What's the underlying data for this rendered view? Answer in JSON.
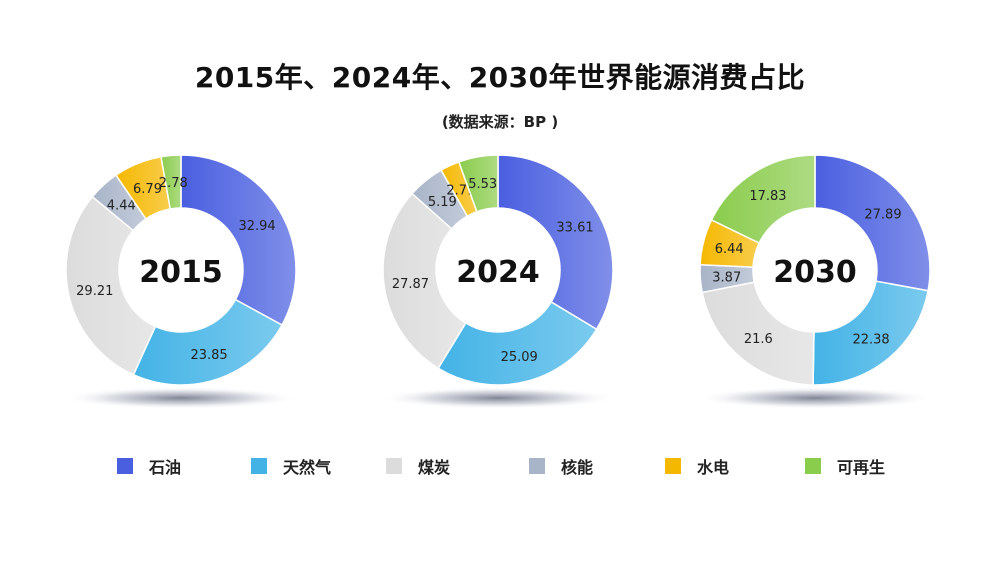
{
  "header": {
    "title": "2015年、2024年、2030年世界能源消费占比",
    "subtitle": "(数据来源：BP )"
  },
  "legend": [
    {
      "label": "石油",
      "color": "#4a5fe0"
    },
    {
      "label": "天然气",
      "color": "#43b3e6"
    },
    {
      "label": "煤炭",
      "color": "#dcdcdc"
    },
    {
      "label": "核能",
      "color": "#a8b4c8"
    },
    {
      "label": "水电",
      "color": "#f5b800"
    },
    {
      "label": "可再生",
      "color": "#8acc4c"
    }
  ],
  "chart_data": [
    {
      "type": "donut",
      "center_label": "2015",
      "categories": [
        "石油",
        "天然气",
        "煤炭",
        "核能",
        "水电",
        "可再生"
      ],
      "values": [
        32.94,
        23.85,
        29.21,
        4.44,
        6.79,
        2.78
      ],
      "data_labels": [
        "32.94",
        "23.85",
        "29.21",
        "4.44",
        "6.79",
        "2.78"
      ]
    },
    {
      "type": "donut",
      "center_label": "2024",
      "categories": [
        "石油",
        "天然气",
        "煤炭",
        "核能",
        "水电",
        "可再生"
      ],
      "values": [
        33.61,
        25.09,
        27.87,
        5.19,
        2.71,
        5.53
      ],
      "data_labels": [
        "33.61",
        "25.09",
        "27.87",
        "5.19",
        "2.71",
        "5.53"
      ]
    },
    {
      "type": "donut",
      "center_label": "2030",
      "categories": [
        "石油",
        "天然气",
        "煤炭",
        "核能",
        "水电",
        "可再生"
      ],
      "values": [
        27.89,
        22.38,
        21.6,
        3.87,
        6.44,
        17.83
      ],
      "data_labels": [
        "27.89",
        "22.38",
        "21.6",
        "3.87",
        "6.44",
        "17.83"
      ]
    }
  ]
}
